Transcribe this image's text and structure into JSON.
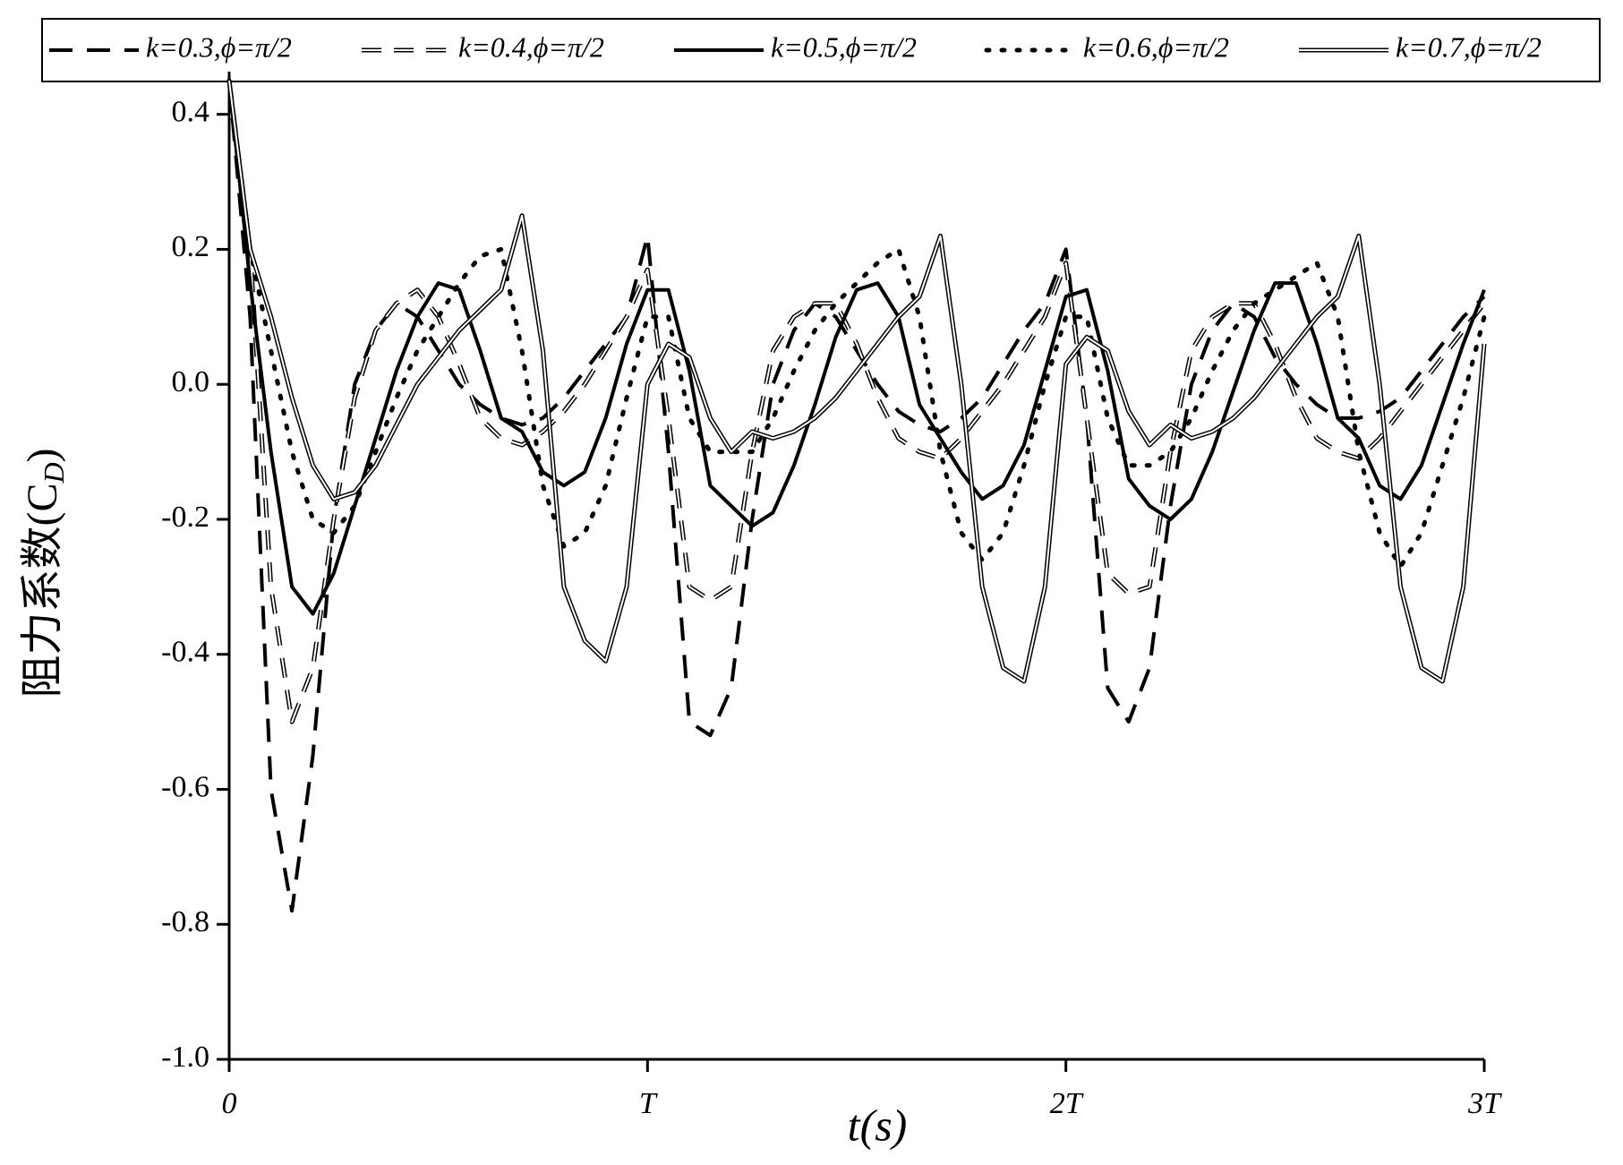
{
  "chart_data": {
    "type": "line",
    "xlabel": "t(s)",
    "ylabel_parts": [
      "阻力系数(C",
      "D",
      ")"
    ],
    "xlim": [
      0,
      3
    ],
    "xticks": [
      0,
      {
        "value": 1,
        "label": "T"
      },
      {
        "value": 2,
        "label": "2T"
      },
      {
        "value": 3,
        "label": "3T"
      }
    ],
    "ylim": [
      -1.0,
      0.45
    ],
    "yticks": [
      0.4,
      0.2,
      {
        "value": 0,
        "label": "0.0"
      },
      -0.2,
      -0.4,
      -0.6,
      -0.8,
      {
        "value": -1,
        "label": "-1.0"
      }
    ],
    "legend": "top",
    "x": [
      0,
      0.05,
      0.1,
      0.15,
      0.2,
      0.25,
      0.3,
      0.35,
      0.4,
      0.45,
      0.5,
      0.55,
      0.6,
      0.65,
      0.7,
      0.75,
      0.8,
      0.85,
      0.9,
      0.95,
      1,
      1.05,
      1.1,
      1.15,
      1.2,
      1.25,
      1.3,
      1.35,
      1.4,
      1.45,
      1.5,
      1.55,
      1.6,
      1.65,
      1.7,
      1.75,
      1.8,
      1.85,
      1.9,
      1.95,
      2,
      2.05,
      2.1,
      2.15,
      2.2,
      2.25,
      2.3,
      2.35,
      2.4,
      2.45,
      2.5,
      2.55,
      2.6,
      2.65,
      2.7,
      2.75,
      2.8,
      2.85,
      2.9,
      2.95,
      3
    ],
    "series": [
      {
        "name": "k=0.3,ϕ=π/2",
        "color": "#000000",
        "style": "dashed",
        "values": [
          0.45,
          0.1,
          -0.6,
          -0.78,
          -0.55,
          -0.2,
          0,
          0.08,
          0.12,
          0.1,
          0.05,
          0,
          -0.03,
          -0.05,
          -0.06,
          -0.05,
          -0.02,
          0.02,
          0.06,
          0.1,
          0.22,
          -0.1,
          -0.5,
          -0.52,
          -0.45,
          -0.2,
          0,
          0.08,
          0.12,
          0.1,
          0.05,
          0,
          -0.04,
          -0.06,
          -0.07,
          -0.05,
          -0.02,
          0.03,
          0.08,
          0.12,
          0.2,
          -0.05,
          -0.45,
          -0.5,
          -0.42,
          -0.18,
          0,
          0.08,
          0.12,
          0.1,
          0.04,
          0,
          -0.03,
          -0.05,
          -0.05,
          -0.04,
          -0.02,
          0.02,
          0.06,
          0.1,
          0.13
        ]
      },
      {
        "name": "k=0.4,ϕ=π/2",
        "color": "#000000",
        "style": "double-dashed",
        "values": [
          0.45,
          0.2,
          -0.3,
          -0.5,
          -0.42,
          -0.2,
          -0.02,
          0.08,
          0.12,
          0.14,
          0.1,
          0.03,
          -0.05,
          -0.08,
          -0.09,
          -0.07,
          -0.04,
          0,
          0.05,
          0.1,
          0.17,
          -0.05,
          -0.3,
          -0.32,
          -0.3,
          -0.1,
          0.05,
          0.1,
          0.12,
          0.12,
          0.06,
          -0.02,
          -0.08,
          -0.1,
          -0.11,
          -0.08,
          -0.04,
          0,
          0.05,
          0.1,
          0.18,
          -0.05,
          -0.28,
          -0.31,
          -0.3,
          -0.1,
          0.05,
          0.1,
          0.12,
          0.12,
          0.06,
          -0.02,
          -0.08,
          -0.1,
          -0.11,
          -0.08,
          -0.04,
          0,
          0.04,
          0.08,
          0.12
        ]
      },
      {
        "name": "k=0.5,ϕ=π/2",
        "color": "#000000",
        "style": "solid",
        "values": [
          0.45,
          0.15,
          -0.1,
          -0.3,
          -0.34,
          -0.28,
          -0.18,
          -0.08,
          0.02,
          0.1,
          0.15,
          0.14,
          0.05,
          -0.05,
          -0.07,
          -0.13,
          -0.15,
          -0.13,
          -0.05,
          0.06,
          0.14,
          0.14,
          0.02,
          -0.15,
          -0.18,
          -0.21,
          -0.19,
          -0.12,
          -0.03,
          0.07,
          0.14,
          0.15,
          0.1,
          -0.03,
          -0.08,
          -0.13,
          -0.17,
          -0.15,
          -0.09,
          0.02,
          0.13,
          0.14,
          0.02,
          -0.14,
          -0.18,
          -0.2,
          -0.17,
          -0.1,
          -0.01,
          0.08,
          0.15,
          0.15,
          0.06,
          -0.05,
          -0.08,
          -0.15,
          -0.17,
          -0.12,
          -0.03,
          0.06,
          0.14
        ]
      },
      {
        "name": "k=0.6,ϕ=π/2",
        "color": "#000000",
        "style": "dotted",
        "values": [
          0.45,
          0.2,
          0.05,
          -0.1,
          -0.2,
          -0.22,
          -0.18,
          -0.1,
          -0.02,
          0.05,
          0.1,
          0.15,
          0.19,
          0.2,
          0.05,
          -0.15,
          -0.24,
          -0.22,
          -0.15,
          -0.02,
          0.1,
          0.1,
          -0.05,
          -0.1,
          -0.1,
          -0.1,
          -0.05,
          0.02,
          0.08,
          0.12,
          0.15,
          0.18,
          0.2,
          0.1,
          -0.1,
          -0.22,
          -0.26,
          -0.22,
          -0.12,
          0,
          0.1,
          0.1,
          -0.05,
          -0.12,
          -0.12,
          -0.1,
          -0.05,
          0.02,
          0.08,
          0.12,
          0.14,
          0.16,
          0.18,
          0.1,
          -0.1,
          -0.22,
          -0.27,
          -0.22,
          -0.12,
          -0.02,
          0.1
        ]
      },
      {
        "name": "k=0.7,ϕ=π/2",
        "color": "#000000",
        "style": "double",
        "values": [
          0.45,
          0.2,
          0.1,
          -0.02,
          -0.12,
          -0.17,
          -0.16,
          -0.12,
          -0.06,
          0,
          0.04,
          0.08,
          0.11,
          0.14,
          0.25,
          0.05,
          -0.3,
          -0.38,
          -0.41,
          -0.3,
          0,
          0.06,
          0.04,
          -0.05,
          -0.1,
          -0.07,
          -0.08,
          -0.07,
          -0.05,
          -0.02,
          0.02,
          0.06,
          0.1,
          0.13,
          0.22,
          0,
          -0.3,
          -0.42,
          -0.44,
          -0.3,
          0.03,
          0.07,
          0.05,
          -0.04,
          -0.09,
          -0.06,
          -0.08,
          -0.07,
          -0.05,
          -0.02,
          0.02,
          0.06,
          0.1,
          0.13,
          0.22,
          0,
          -0.3,
          -0.42,
          -0.44,
          -0.3,
          0.06
        ]
      }
    ]
  }
}
